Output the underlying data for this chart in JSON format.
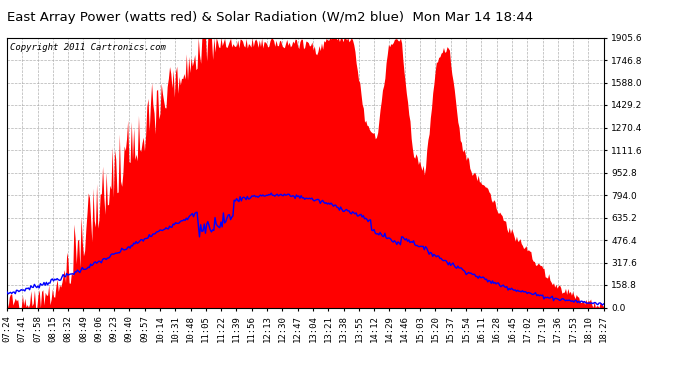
{
  "title": "East Array Power (watts red) & Solar Radiation (W/m2 blue)  Mon Mar 14 18:44",
  "copyright_text": "Copyright 2011 Cartronics.com",
  "y_ticks": [
    0.0,
    158.8,
    317.6,
    476.4,
    635.2,
    794.0,
    952.8,
    1111.6,
    1270.4,
    1429.2,
    1588.0,
    1746.8,
    1905.6
  ],
  "y_max": 1905.6,
  "y_min": 0.0,
  "red_color": "#FF0000",
  "blue_color": "#0000FF",
  "background_color": "#FFFFFF",
  "grid_color": "#AAAAAA",
  "title_fontsize": 9.5,
  "copyright_fontsize": 6.5,
  "tick_fontsize": 6.5,
  "x_tick_labels": [
    "07:24",
    "07:41",
    "07:58",
    "08:15",
    "08:32",
    "08:49",
    "09:06",
    "09:23",
    "09:40",
    "09:57",
    "10:14",
    "10:31",
    "10:48",
    "11:05",
    "11:22",
    "11:39",
    "11:56",
    "12:13",
    "12:30",
    "12:47",
    "13:04",
    "13:21",
    "13:38",
    "13:55",
    "14:12",
    "14:29",
    "14:46",
    "15:03",
    "15:20",
    "15:37",
    "15:54",
    "16:11",
    "16:28",
    "16:45",
    "17:02",
    "17:19",
    "17:36",
    "17:53",
    "18:10",
    "18:27"
  ]
}
